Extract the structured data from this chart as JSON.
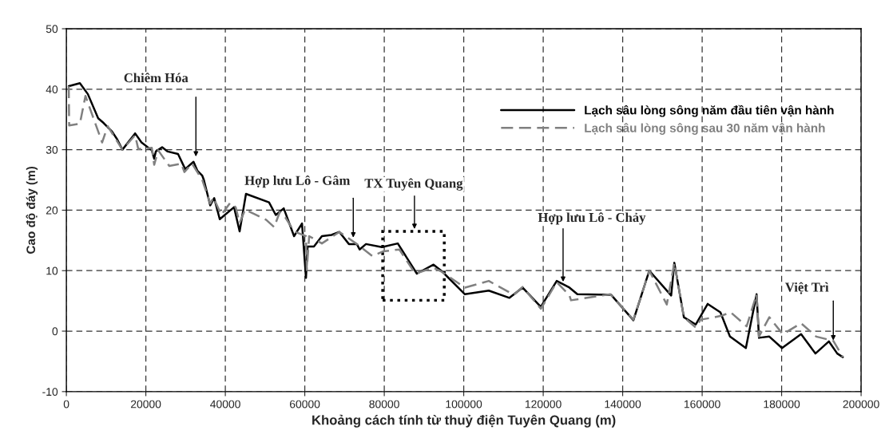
{
  "chart_data": {
    "type": "line",
    "xlabel": "Khoảng cách tính từ thuỷ điện Tuyên Quang (m)",
    "ylabel": "Cao độ đáy (m)",
    "xlim": [
      0,
      200000
    ],
    "xticks": [
      0,
      20000,
      40000,
      60000,
      80000,
      100000,
      120000,
      140000,
      160000,
      180000,
      200000
    ],
    "ylim": [
      -10,
      50
    ],
    "yticks": [
      -10,
      0,
      10,
      20,
      30,
      40,
      50
    ],
    "grid": true,
    "legend": "top right",
    "marker": "none",
    "series": [
      {
        "name": "Lạch sâu lòng sông năm đầu tiên vận hành",
        "color": "#000000",
        "line_style": "solid",
        "x": [
          600,
          3400,
          5400,
          8000,
          9400,
          11500,
          12800,
          14100,
          17300,
          18900,
          21500,
          22100,
          22500,
          24100,
          25500,
          28100,
          29900,
          32000,
          33000,
          34200,
          34600,
          36200,
          37200,
          38600,
          42200,
          43600,
          45200,
          51000,
          52700,
          54700,
          57300,
          59300,
          60300,
          60700,
          62300,
          64300,
          66700,
          68700,
          71100,
          73100,
          73800,
          75400,
          79400,
          83400,
          88200,
          92400,
          94500,
          100300,
          106300,
          111500,
          114800,
          119400,
          123400,
          126600,
          128600,
          137100,
          142700,
          146700,
          152200,
          153000,
          155400,
          158400,
          161400,
          164600,
          167000,
          171000,
          173700,
          174300,
          176900,
          180100,
          184900,
          188500,
          191900,
          194000,
          195400
        ],
        "values": [
          40.5,
          41,
          39.2,
          35.2,
          34.4,
          33,
          31.7,
          30,
          32.7,
          31.2,
          29.9,
          28.5,
          29.7,
          30.4,
          29.7,
          29.3,
          26.8,
          28,
          26.5,
          25.7,
          25,
          20.8,
          22,
          18.5,
          20.5,
          16.5,
          22.7,
          21.3,
          19.2,
          20.3,
          15.7,
          17.8,
          8.8,
          14,
          14,
          15.7,
          15.9,
          16.4,
          14.4,
          14.4,
          13.5,
          14.4,
          13.9,
          14.5,
          9.5,
          11,
          9.9,
          6.1,
          6.7,
          5.5,
          7.2,
          4,
          8.3,
          7.2,
          6.1,
          6,
          1.8,
          10,
          5.9,
          11.3,
          2.3,
          1.1,
          4.5,
          3.1,
          -0.9,
          -2.8,
          6.1,
          -1.1,
          -0.9,
          -2.8,
          -0.5,
          -3.7,
          -1.7,
          -3.7,
          -4.3
        ]
      },
      {
        "name": "Lạch sâu lòng sông sau 30 năm vận hành",
        "color": "#808080",
        "line_style": "dashed",
        "x": [
          600,
          700,
          3400,
          4800,
          9000,
          10400,
          14100,
          17300,
          18100,
          21500,
          22100,
          23100,
          25900,
          28900,
          29700,
          31600,
          34200,
          36200,
          37000,
          39000,
          41200,
          42600,
          43600,
          45000,
          50300,
          52300,
          53700,
          55100,
          57300,
          60300,
          60500,
          61100,
          64300,
          68700,
          73100,
          77000,
          79800,
          83800,
          87800,
          92300,
          94500,
          100300,
          106300,
          112600,
          114800,
          119400,
          123400,
          126600,
          127000,
          136900,
          142700,
          146700,
          151100,
          153000,
          155400,
          158400,
          159600,
          161400,
          164600,
          167200,
          171200,
          173700,
          174300,
          176900,
          180300,
          184900,
          188700,
          193000,
          195400
        ],
        "values": [
          40.5,
          34,
          34.3,
          38.9,
          31.2,
          33.9,
          30,
          32.4,
          30.1,
          30.3,
          27.5,
          29.9,
          27.3,
          27.7,
          26.3,
          27.7,
          25,
          21.1,
          22.1,
          19.2,
          21.2,
          20.5,
          17.9,
          20.1,
          18.4,
          17.2,
          19.7,
          18.8,
          16.5,
          15.7,
          10.1,
          15.7,
          14.5,
          16.4,
          14.4,
          12.4,
          13.2,
          13.5,
          9.5,
          10.5,
          9.8,
          7.2,
          8.3,
          6,
          7.3,
          3.7,
          8.1,
          5.9,
          5.1,
          6.1,
          1.9,
          10,
          4.4,
          11.3,
          2.3,
          0.6,
          1.9,
          2.1,
          2.5,
          3.1,
          0.8,
          6.1,
          -0.9,
          2.3,
          -0.5,
          1.3,
          -0.9,
          -1.6,
          -4.3
        ]
      }
    ],
    "annotations": [
      {
        "text": "Chiêm Hóa",
        "x": 32600,
        "y": 28.5
      },
      {
        "text": "Hợp lưu Lô - Gâm",
        "x": 72200,
        "y": 15.1
      },
      "TX Tuyên Quang",
      {
        "text": "Hợp lưu Lô - Chảy",
        "x": 125000,
        "y": 7.8
      },
      {
        "text": "Việt Trì",
        "x": 193000,
        "y": -1.9
      }
    ]
  }
}
